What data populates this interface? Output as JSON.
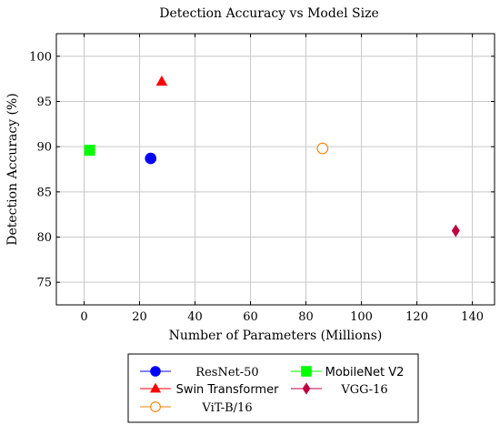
{
  "chart_data": {
    "type": "scatter",
    "title": "Detection Accuracy vs Model Size",
    "xlabel": "Number of Parameters (Millions)",
    "ylabel": "Detection Accuracy (%)",
    "xlim": [
      -10,
      148
    ],
    "ylim": [
      72.5,
      102.5
    ],
    "xticks": [
      0,
      20,
      40,
      60,
      80,
      100,
      120,
      140
    ],
    "yticks": [
      75,
      80,
      85,
      90,
      95,
      100
    ],
    "grid": true,
    "legend_position": "bottom",
    "series": [
      {
        "name": "ResNet-50",
        "marker": "circle",
        "color": "#0000ff",
        "x": 24,
        "y": 88.7
      },
      {
        "name": "MobileNet V2",
        "marker": "square",
        "color": "#00ff00",
        "x": 2,
        "y": 89.6
      },
      {
        "name": "Swin Transformer",
        "marker": "triangle",
        "color": "#ff0000",
        "x": 28,
        "y": 97.2
      },
      {
        "name": "VGG-16",
        "marker": "diamond",
        "color": "#bf0040",
        "x": 134,
        "y": 80.7
      },
      {
        "name": "ViT-B/16",
        "marker": "open-circle",
        "color": "#ff8000",
        "x": 86,
        "y": 89.8
      }
    ]
  }
}
